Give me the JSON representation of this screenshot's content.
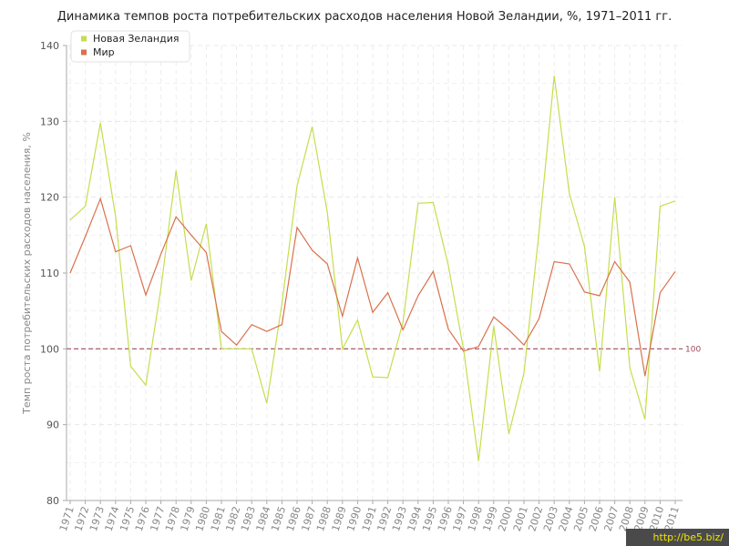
{
  "chart_data": {
    "type": "line",
    "title": "Динамика темпов роста потребительских расходов населения Новой Зеландии, %, 1971–2011 гг.",
    "ylabel": "Темп роста потребительских расходов населения, %",
    "xlabel": "",
    "ylim": [
      80,
      140
    ],
    "yticks": [
      80,
      90,
      100,
      110,
      120,
      130,
      140
    ],
    "grid": true,
    "legend_position": "top-left",
    "x": [
      "1971",
      "1972",
      "1973",
      "1974",
      "1975",
      "1976",
      "1977",
      "1978",
      "1979",
      "1980",
      "1981",
      "1982",
      "1983",
      "1984",
      "1985",
      "1986",
      "1987",
      "1988",
      "1989",
      "1990",
      "1991",
      "1992",
      "1993",
      "1994",
      "1995",
      "1996",
      "1997",
      "1998",
      "1999",
      "2000",
      "2001",
      "2002",
      "2003",
      "2004",
      "2005",
      "2006",
      "2007",
      "2008",
      "2009",
      "2010",
      "2011"
    ],
    "series": [
      {
        "name": "Новая Зеландия",
        "color": "#c6de4c",
        "values": [
          117,
          118.8,
          129.8,
          117.5,
          97.7,
          95.2,
          108,
          123.5,
          109,
          116.5,
          100,
          100,
          100,
          92.8,
          106,
          121.5,
          129.3,
          118,
          100,
          103.8,
          96.3,
          96.2,
          103.5,
          119.2,
          119.3,
          111,
          100,
          85.2,
          103,
          88.8,
          96.8,
          115.5,
          136,
          120.5,
          113.5,
          97,
          120,
          97.5,
          90.7,
          118.8,
          119.5
        ]
      },
      {
        "name": "Мир",
        "color": "#d9714b",
        "values": [
          110,
          114.8,
          119.8,
          112.8,
          113.6,
          107.1,
          112.5,
          117.4,
          115,
          112.7,
          102.3,
          100.5,
          103.2,
          102.3,
          103.2,
          116,
          113,
          111.2,
          104.3,
          112,
          104.8,
          107.4,
          102.5,
          107,
          110.2,
          102.6,
          99.7,
          100.3,
          104.2,
          102.5,
          100.5,
          104,
          111.5,
          111.2,
          107.5,
          107,
          111.5,
          108.8,
          96.4,
          107.4,
          110.2
        ]
      }
    ],
    "reference_line": {
      "value": 100,
      "label": "100",
      "color": "#a04a5a"
    }
  },
  "watermark": "http://be5.biz/"
}
